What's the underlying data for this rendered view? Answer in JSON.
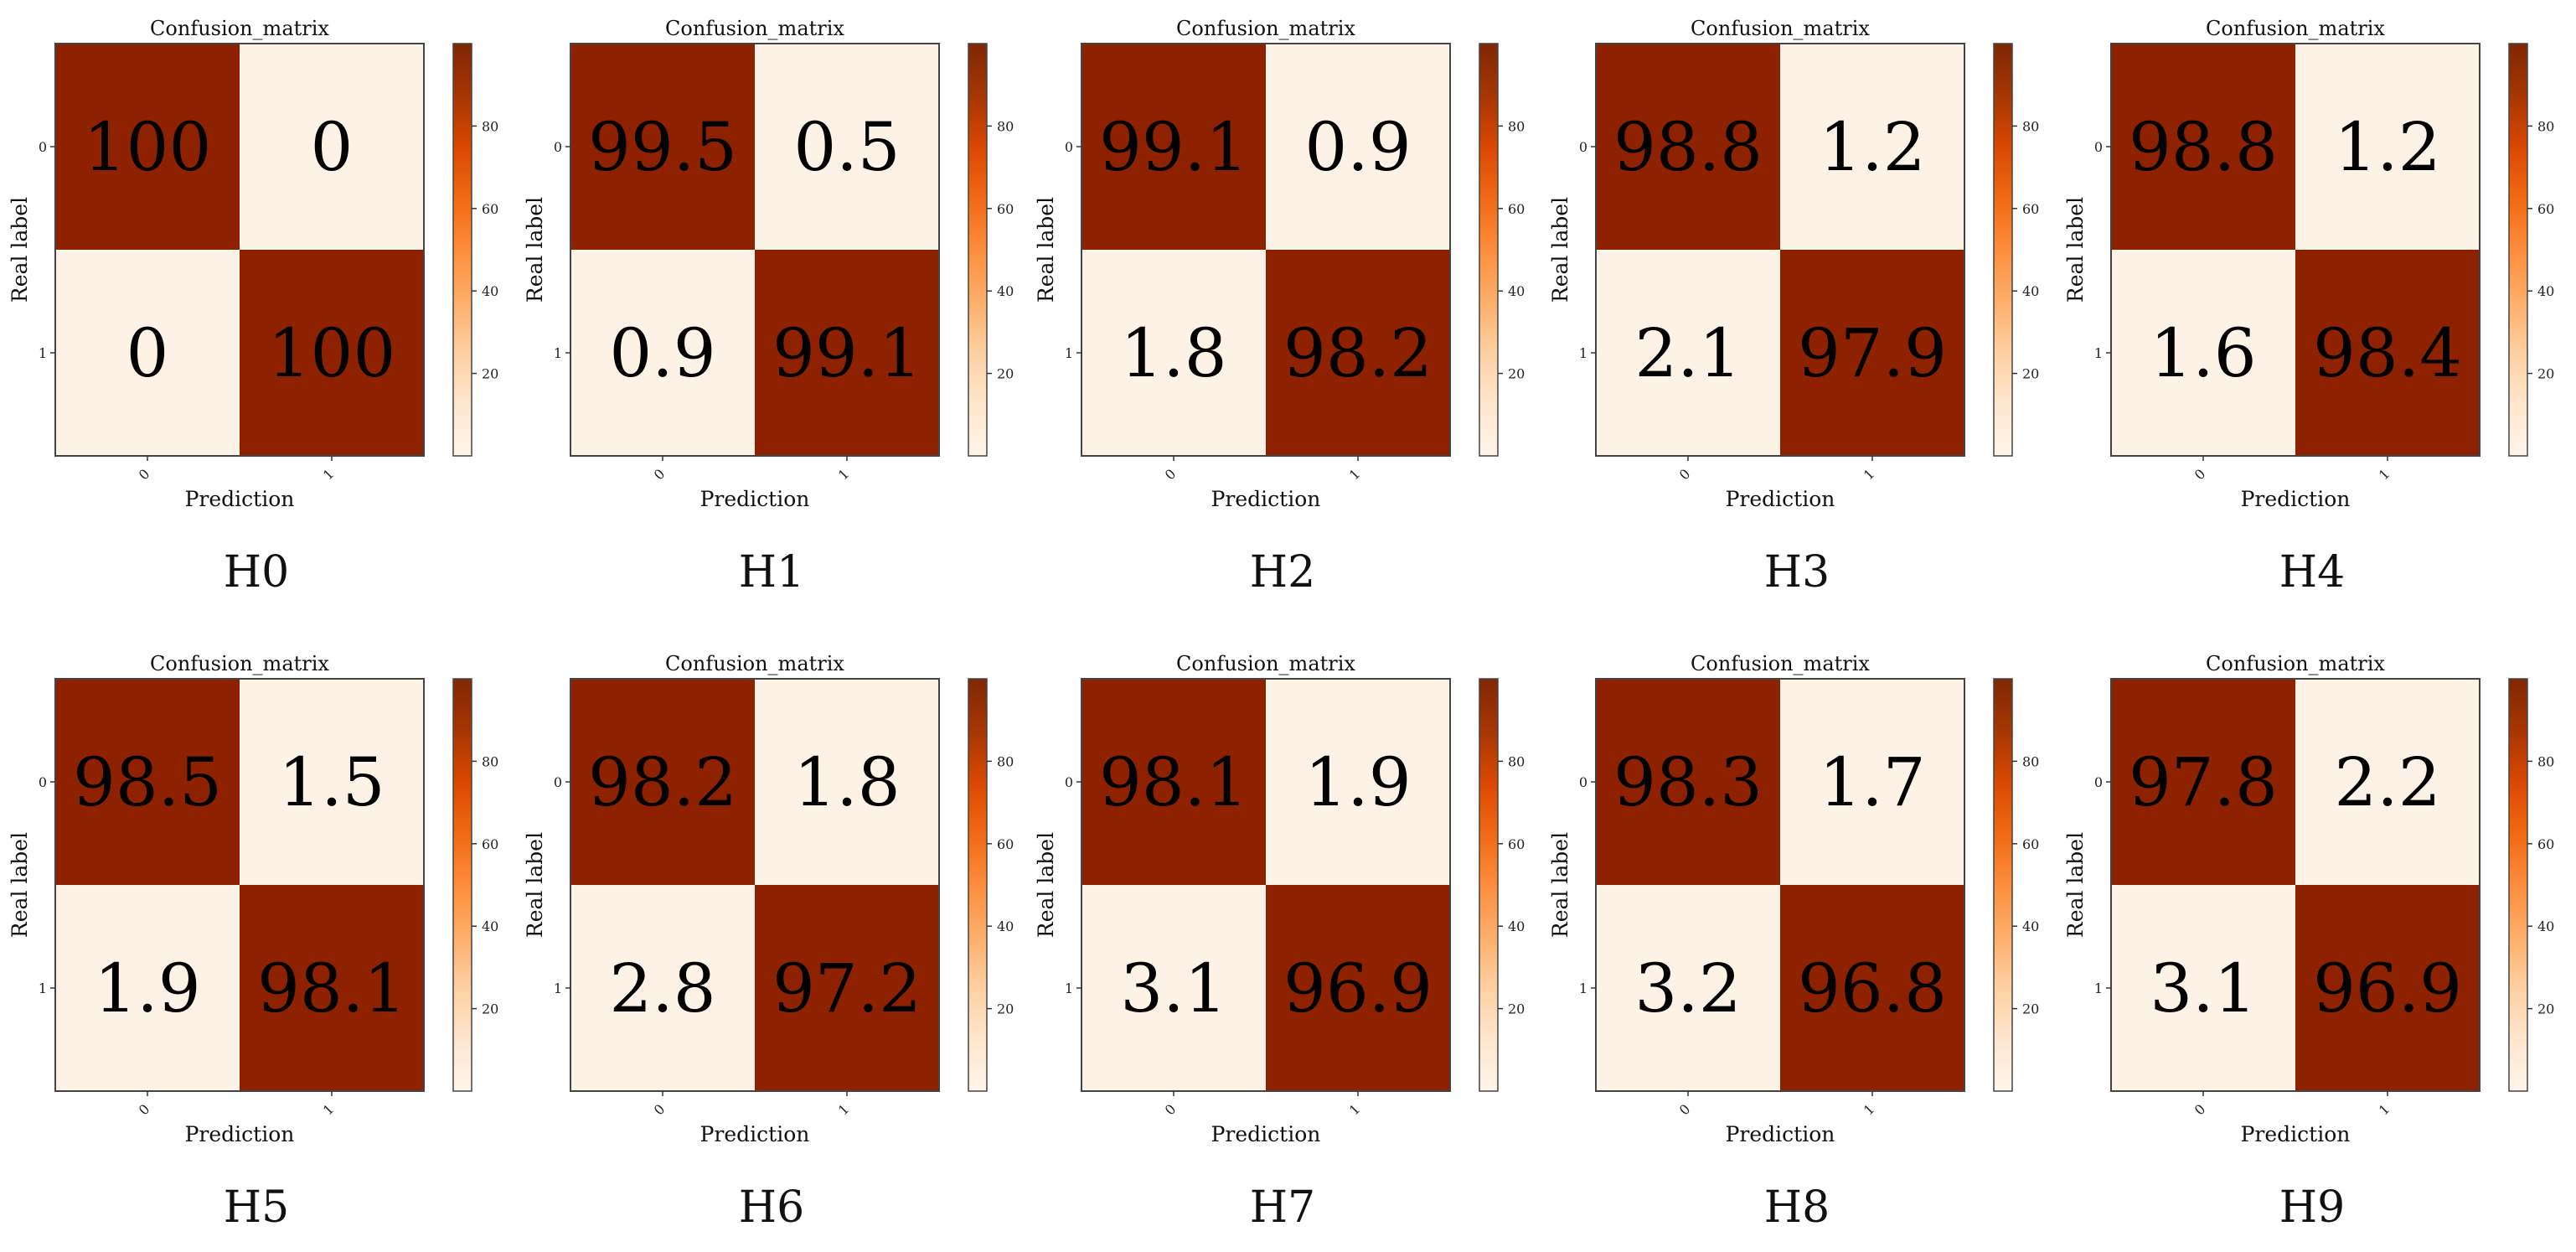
{
  "colors": {
    "high": "#8e2100",
    "low": "#fdf2e6",
    "cell_text": "#000000",
    "frame": "#444444",
    "colorbar_stops": [
      "#fff5eb",
      "#fee6ce",
      "#fdd0a2",
      "#fdae6b",
      "#fd8d3c",
      "#f16913",
      "#d94801",
      "#a63603",
      "#7f2704"
    ]
  },
  "chart_data": [
    {
      "type": "heatmap",
      "panel_label": "H0",
      "title": "Confusion_matrix",
      "xlabel": "Prediction",
      "ylabel": "Real label",
      "x_ticks": [
        "0",
        "1"
      ],
      "y_ticks": [
        "0",
        "1"
      ],
      "values": [
        [
          100,
          0
        ],
        [
          0,
          100
        ]
      ],
      "labels": [
        [
          "100",
          "0"
        ],
        [
          "0",
          "100"
        ]
      ],
      "colorbar_ticks": [
        20,
        40,
        60,
        80
      ],
      "colorbar_range": [
        0,
        100
      ]
    },
    {
      "type": "heatmap",
      "panel_label": "H1",
      "title": "Confusion_matrix",
      "xlabel": "Prediction",
      "ylabel": "Real label",
      "x_ticks": [
        "0",
        "1"
      ],
      "y_ticks": [
        "0",
        "1"
      ],
      "values": [
        [
          99.5,
          0.5
        ],
        [
          0.9,
          99.1
        ]
      ],
      "labels": [
        [
          "99.5",
          "0.5"
        ],
        [
          "0.9",
          "99.1"
        ]
      ],
      "colorbar_ticks": [
        20,
        40,
        60,
        80
      ],
      "colorbar_range": [
        0,
        100
      ]
    },
    {
      "type": "heatmap",
      "panel_label": "H2",
      "title": "Confusion_matrix",
      "xlabel": "Prediction",
      "ylabel": "Real label",
      "x_ticks": [
        "0",
        "1"
      ],
      "y_ticks": [
        "0",
        "1"
      ],
      "values": [
        [
          99.1,
          0.9
        ],
        [
          1.8,
          98.2
        ]
      ],
      "labels": [
        [
          "99.1",
          "0.9"
        ],
        [
          "1.8",
          "98.2"
        ]
      ],
      "colorbar_ticks": [
        20,
        40,
        60,
        80
      ],
      "colorbar_range": [
        0,
        100
      ]
    },
    {
      "type": "heatmap",
      "panel_label": "H3",
      "title": "Confusion_matrix",
      "xlabel": "Prediction",
      "ylabel": "Real label",
      "x_ticks": [
        "0",
        "1"
      ],
      "y_ticks": [
        "0",
        "1"
      ],
      "values": [
        [
          98.8,
          1.2
        ],
        [
          2.1,
          97.9
        ]
      ],
      "labels": [
        [
          "98.8",
          "1.2"
        ],
        [
          "2.1",
          "97.9"
        ]
      ],
      "colorbar_ticks": [
        20,
        40,
        60,
        80
      ],
      "colorbar_range": [
        0,
        100
      ]
    },
    {
      "type": "heatmap",
      "panel_label": "H4",
      "title": "Confusion_matrix",
      "xlabel": "Prediction",
      "ylabel": "Real label",
      "x_ticks": [
        "0",
        "1"
      ],
      "y_ticks": [
        "0",
        "1"
      ],
      "values": [
        [
          98.8,
          1.2
        ],
        [
          1.6,
          98.4
        ]
      ],
      "labels": [
        [
          "98.8",
          "1.2"
        ],
        [
          "1.6",
          "98.4"
        ]
      ],
      "colorbar_ticks": [
        20,
        40,
        60,
        80
      ],
      "colorbar_range": [
        0,
        100
      ]
    },
    {
      "type": "heatmap",
      "panel_label": "H5",
      "title": "Confusion_matrix",
      "xlabel": "Prediction",
      "ylabel": "Real label",
      "x_ticks": [
        "0",
        "1"
      ],
      "y_ticks": [
        "0",
        "1"
      ],
      "values": [
        [
          98.5,
          1.5
        ],
        [
          1.9,
          98.1
        ]
      ],
      "labels": [
        [
          "98.5",
          "1.5"
        ],
        [
          "1.9",
          "98.1"
        ]
      ],
      "colorbar_ticks": [
        20,
        40,
        60,
        80
      ],
      "colorbar_range": [
        0,
        100
      ]
    },
    {
      "type": "heatmap",
      "panel_label": "H6",
      "title": "Confusion_matrix",
      "xlabel": "Prediction",
      "ylabel": "Real label",
      "x_ticks": [
        "0",
        "1"
      ],
      "y_ticks": [
        "0",
        "1"
      ],
      "values": [
        [
          98.2,
          1.8
        ],
        [
          2.8,
          97.2
        ]
      ],
      "labels": [
        [
          "98.2",
          "1.8"
        ],
        [
          "2.8",
          "97.2"
        ]
      ],
      "colorbar_ticks": [
        20,
        40,
        60,
        80
      ],
      "colorbar_range": [
        0,
        100
      ]
    },
    {
      "type": "heatmap",
      "panel_label": "H7",
      "title": "Confusion_matrix",
      "xlabel": "Prediction",
      "ylabel": "Real label",
      "x_ticks": [
        "0",
        "1"
      ],
      "y_ticks": [
        "0",
        "1"
      ],
      "values": [
        [
          98.1,
          1.9
        ],
        [
          3.1,
          96.9
        ]
      ],
      "labels": [
        [
          "98.1",
          "1.9"
        ],
        [
          "3.1",
          "96.9"
        ]
      ],
      "colorbar_ticks": [
        20,
        40,
        60,
        80
      ],
      "colorbar_range": [
        0,
        100
      ]
    },
    {
      "type": "heatmap",
      "panel_label": "H8",
      "title": "Confusion_matrix",
      "xlabel": "Prediction",
      "ylabel": "Real label",
      "x_ticks": [
        "0",
        "1"
      ],
      "y_ticks": [
        "0",
        "1"
      ],
      "values": [
        [
          98.3,
          1.7
        ],
        [
          3.2,
          96.8
        ]
      ],
      "labels": [
        [
          "98.3",
          "1.7"
        ],
        [
          "3.2",
          "96.8"
        ]
      ],
      "colorbar_ticks": [
        20,
        40,
        60,
        80
      ],
      "colorbar_range": [
        0,
        100
      ]
    },
    {
      "type": "heatmap",
      "panel_label": "H9",
      "title": "Confusion_matrix",
      "xlabel": "Prediction",
      "ylabel": "Real label",
      "x_ticks": [
        "0",
        "1"
      ],
      "y_ticks": [
        "0",
        "1"
      ],
      "values": [
        [
          97.8,
          2.2
        ],
        [
          3.1,
          96.9
        ]
      ],
      "labels": [
        [
          "97.8",
          "2.2"
        ],
        [
          "3.1",
          "96.9"
        ]
      ],
      "colorbar_ticks": [
        20,
        40,
        60,
        80
      ],
      "colorbar_range": [
        0,
        100
      ]
    }
  ]
}
